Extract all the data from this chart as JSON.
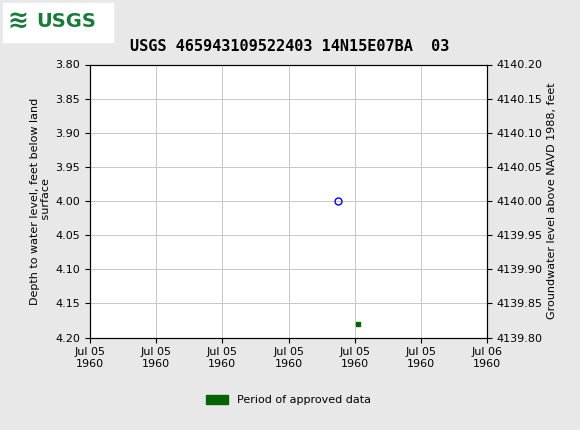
{
  "title": "USGS 465943109522403 14N15E07BA  03",
  "ylabel_left": "Depth to water level, feet below land\n surface",
  "ylabel_right": "Groundwater level above NAVD 1988, feet",
  "ylim_left": [
    4.2,
    3.8
  ],
  "ylim_right": [
    4139.8,
    4140.2
  ],
  "yticks_left": [
    3.8,
    3.85,
    3.9,
    3.95,
    4.0,
    4.05,
    4.1,
    4.15,
    4.2
  ],
  "yticks_right": [
    4139.8,
    4139.85,
    4139.9,
    4139.95,
    4140.0,
    4140.05,
    4140.1,
    4140.15,
    4140.2
  ],
  "xlim_start_days": 0.0,
  "xlim_end_days": 2.0,
  "data_point_blue": {
    "x": 1.25,
    "value": 4.0
  },
  "data_point_green": {
    "x": 1.35,
    "value": 4.18
  },
  "legend_label": "Period of approved data",
  "legend_color": "#006400",
  "header_bg_color": "#1a7a3a",
  "grid_color": "#c8c8c8",
  "title_fontsize": 11,
  "axis_fontsize": 8,
  "tick_fontsize": 8,
  "fig_width": 5.8,
  "fig_height": 4.3,
  "dpi": 100
}
